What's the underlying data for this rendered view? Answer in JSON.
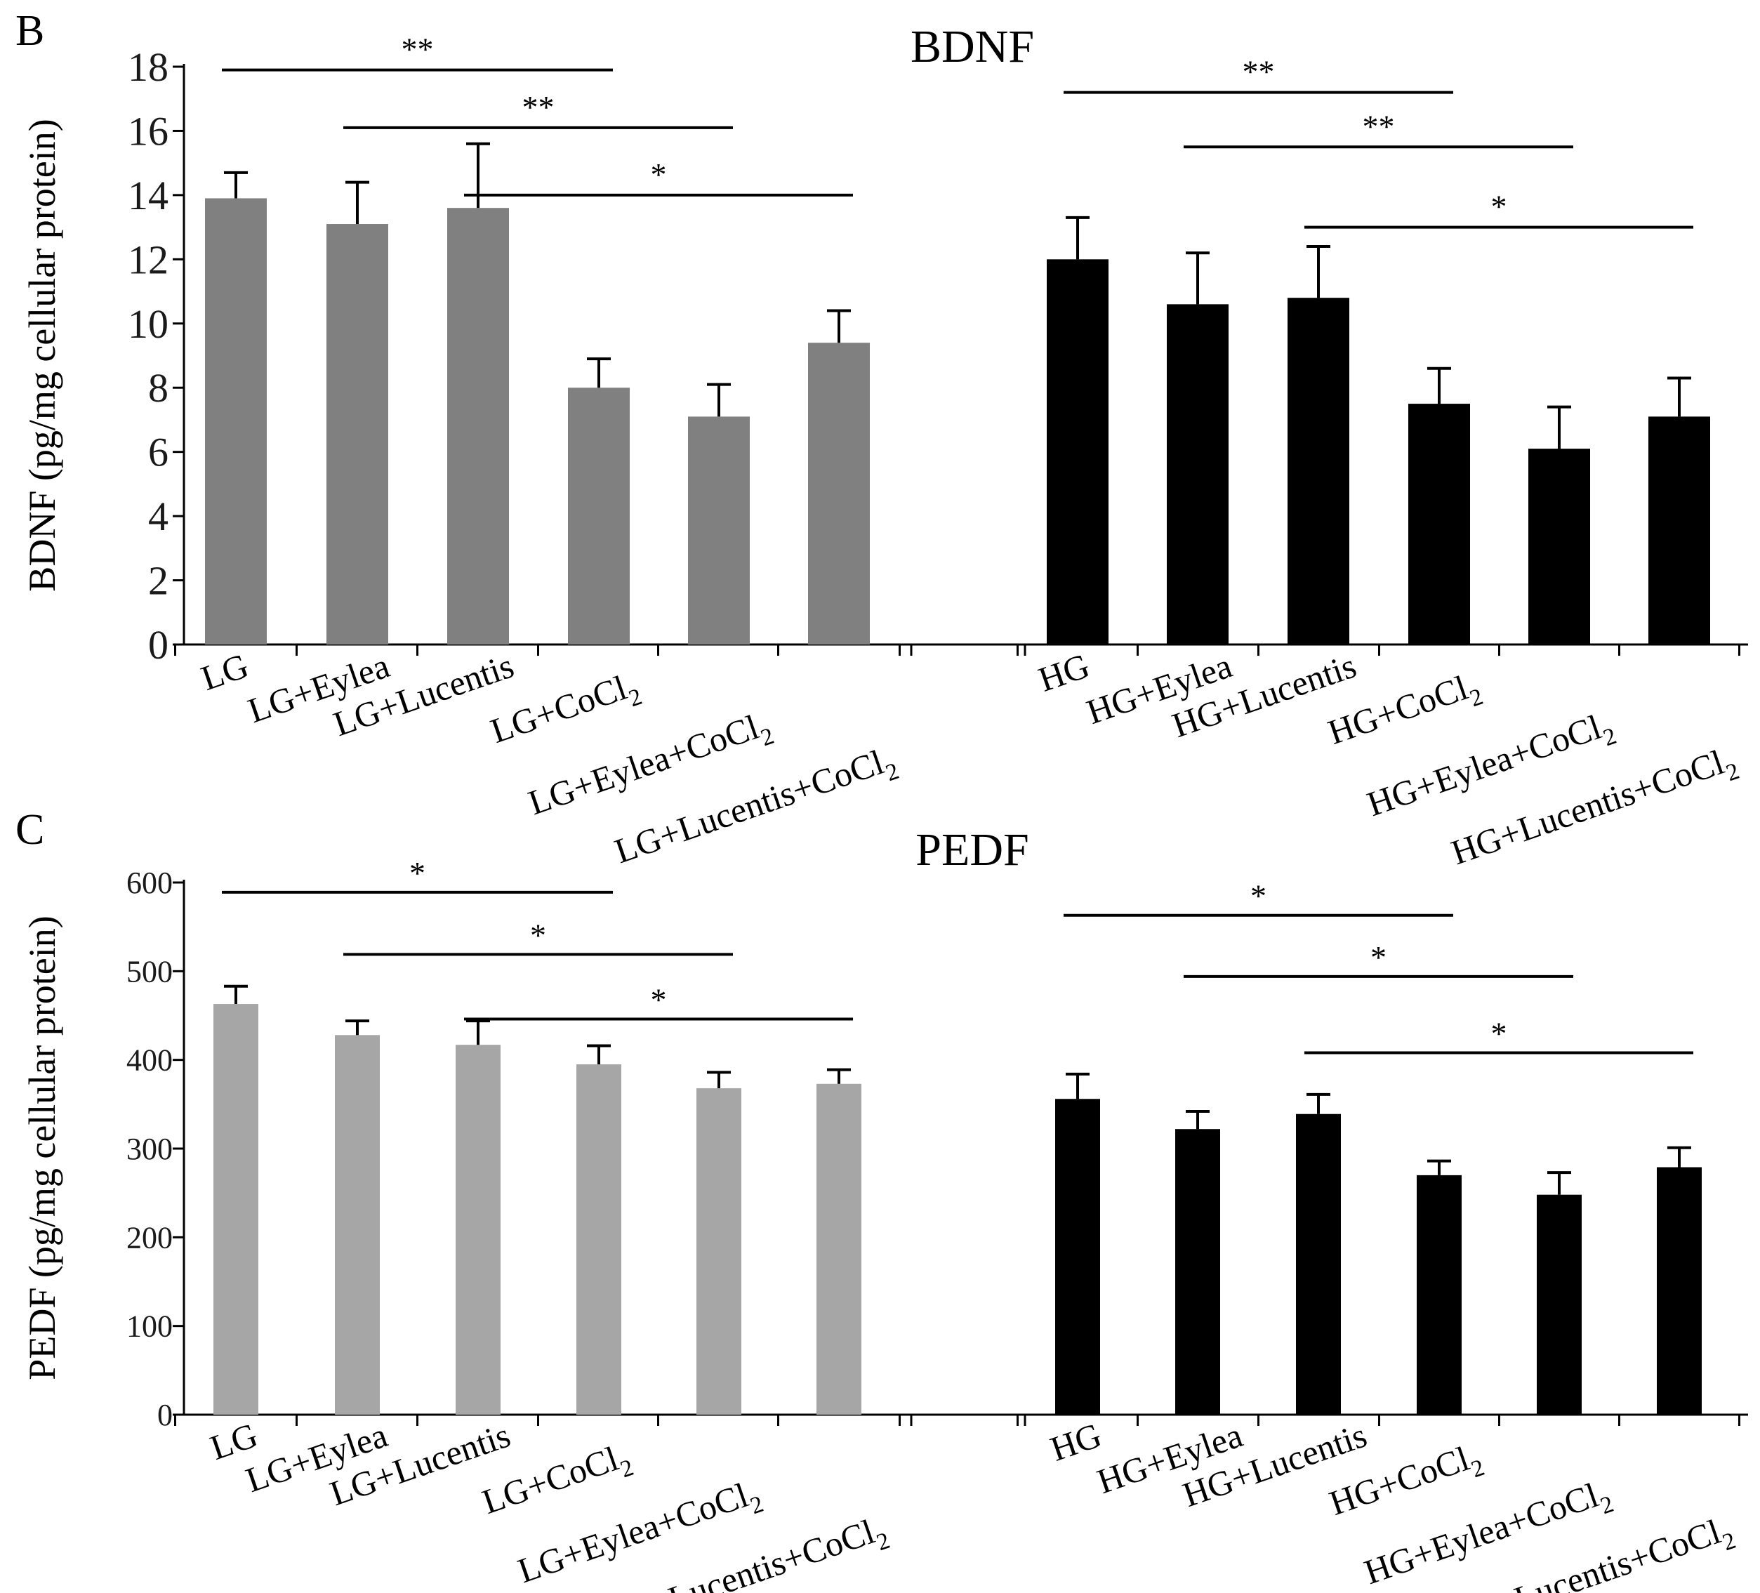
{
  "chart_data": [
    {
      "type": "bar",
      "panel_label": "B",
      "title": "BDNF",
      "ylabel": "BDNF (pg/mg cellular protein)",
      "ylim": [
        0,
        18
      ],
      "yticks": [
        "0",
        "2",
        "4",
        "6",
        "8",
        "10",
        "12",
        "14",
        "16",
        "18"
      ],
      "xlabel": "",
      "groups": [
        {
          "name": "LG",
          "color": "#808080",
          "categories": [
            {
              "main": "LG",
              "sub": ""
            },
            {
              "main": "LG+Eylea",
              "sub": ""
            },
            {
              "main": "LG+Lucentis",
              "sub": ""
            },
            {
              "main": "LG+CoCl",
              "sub": "2"
            },
            {
              "main": "LG+Eylea+CoCl",
              "sub": "2"
            },
            {
              "main": "LG+Lucentis+CoCl",
              "sub": "2"
            }
          ],
          "values": [
            13.9,
            13.1,
            13.6,
            8.0,
            7.1,
            9.4
          ],
          "errors": [
            0.8,
            1.3,
            2.0,
            0.9,
            1.0,
            1.0
          ]
        },
        {
          "name": "HG",
          "color": "#000000",
          "categories": [
            {
              "main": "HG",
              "sub": ""
            },
            {
              "main": "HG+Eylea",
              "sub": ""
            },
            {
              "main": "HG+Lucentis",
              "sub": ""
            },
            {
              "main": "HG+CoCl",
              "sub": "2"
            },
            {
              "main": "HG+Eylea+CoCl",
              "sub": "2"
            },
            {
              "main": "HG+Lucentis+CoCl",
              "sub": "2"
            }
          ],
          "values": [
            12.0,
            10.6,
            10.8,
            7.5,
            6.1,
            7.1
          ],
          "errors": [
            1.3,
            1.6,
            1.6,
            1.1,
            1.3,
            1.2
          ]
        }
      ],
      "significance": [
        {
          "group": 0,
          "from": 0,
          "to": 3,
          "label": "**",
          "level": 17.9
        },
        {
          "group": 0,
          "from": 1,
          "to": 4,
          "label": "**",
          "level": 16.1
        },
        {
          "group": 0,
          "from": 2,
          "to": 5,
          "label": "*",
          "level": 14.0
        },
        {
          "group": 1,
          "from": 0,
          "to": 3,
          "label": "**",
          "level": 17.2
        },
        {
          "group": 1,
          "from": 1,
          "to": 4,
          "label": "**",
          "level": 15.5
        },
        {
          "group": 1,
          "from": 2,
          "to": 5,
          "label": "*",
          "level": 13.0
        }
      ]
    },
    {
      "type": "bar",
      "panel_label": "C",
      "title": "PEDF",
      "ylabel": "PEDF (pg/mg cellular protein)",
      "ylim": [
        0,
        600
      ],
      "yticks": [
        "0",
        "100",
        "200",
        "300",
        "400",
        "500",
        "600"
      ],
      "xlabel": "",
      "groups": [
        {
          "name": "LG",
          "color": "#a6a6a6",
          "categories": [
            {
              "main": "LG",
              "sub": ""
            },
            {
              "main": "LG+Eylea",
              "sub": ""
            },
            {
              "main": "LG+Lucentis",
              "sub": ""
            },
            {
              "main": "LG+CoCl",
              "sub": "2"
            },
            {
              "main": "LG+Eylea+CoCl",
              "sub": "2"
            },
            {
              "main": "LG+Lucentis+CoCl",
              "sub": "2"
            }
          ],
          "values": [
            463,
            428,
            417,
            395,
            368,
            373
          ],
          "errors": [
            20,
            16,
            27,
            21,
            18,
            16
          ]
        },
        {
          "name": "HG",
          "color": "#000000",
          "categories": [
            {
              "main": "HG",
              "sub": ""
            },
            {
              "main": "HG+Eylea",
              "sub": ""
            },
            {
              "main": "HG+Lucentis",
              "sub": ""
            },
            {
              "main": "HG+CoCl",
              "sub": "2"
            },
            {
              "main": "HG+Eylea+CoCl",
              "sub": "2"
            },
            {
              "main": "HG+Lucentis+CoCl",
              "sub": "2"
            }
          ],
          "values": [
            356,
            322,
            339,
            270,
            248,
            279
          ],
          "errors": [
            28,
            20,
            22,
            16,
            25,
            22
          ]
        }
      ],
      "significance": [
        {
          "group": 0,
          "from": 0,
          "to": 3,
          "label": "*",
          "level": 589
        },
        {
          "group": 0,
          "from": 1,
          "to": 4,
          "label": "*",
          "level": 519
        },
        {
          "group": 0,
          "from": 2,
          "to": 5,
          "label": "*",
          "level": 446
        },
        {
          "group": 1,
          "from": 0,
          "to": 3,
          "label": "*",
          "level": 563
        },
        {
          "group": 1,
          "from": 1,
          "to": 4,
          "label": "*",
          "level": 494
        },
        {
          "group": 1,
          "from": 2,
          "to": 5,
          "label": "*",
          "level": 408
        }
      ]
    }
  ]
}
